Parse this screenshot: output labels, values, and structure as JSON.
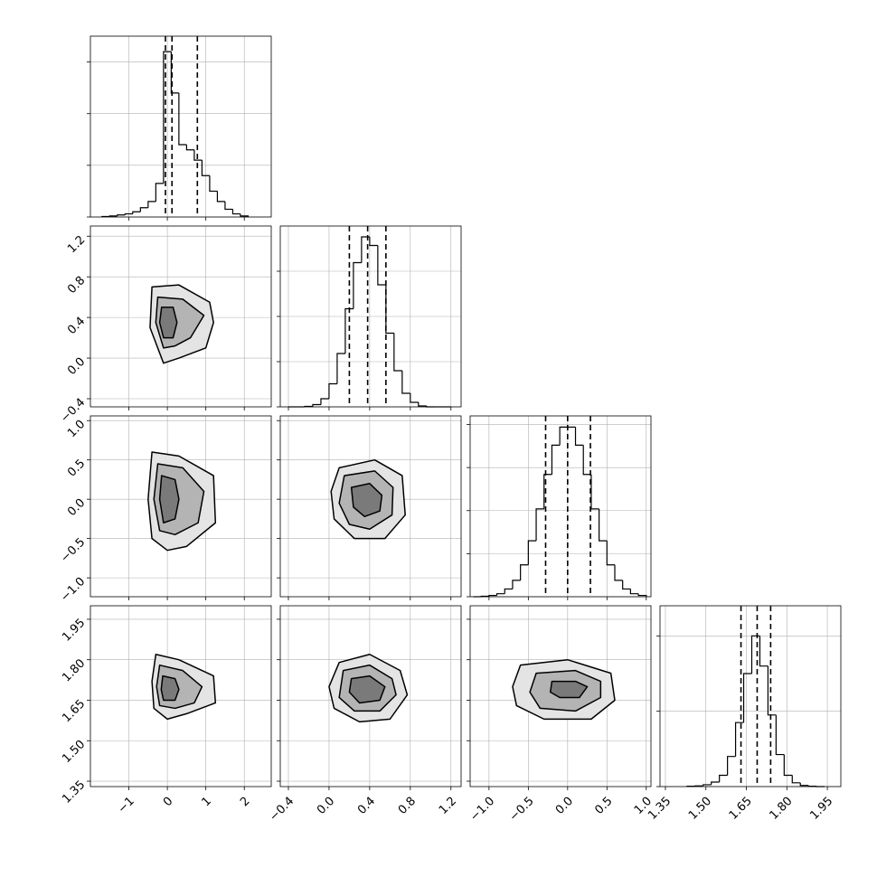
{
  "chart_data": {
    "type": "corner",
    "grid": true,
    "line_color": "#000000",
    "grid_color": "#b0b0b0",
    "fill_colors": [
      "#e4e4e4",
      "#b4b4b4",
      "#7a7a7a"
    ],
    "parameters": [
      {
        "lim": [
          -2.0,
          2.7
        ],
        "ticks": [
          {
            "value": -1,
            "label": "−1"
          },
          0,
          1,
          2
        ],
        "quantiles": [
          -0.05,
          0.12,
          0.78
        ],
        "hist": {
          "bins": [
            -1.7,
            -1.5,
            -1.3,
            -1.1,
            -0.9,
            -0.7,
            -0.5,
            -0.3,
            -0.1,
            0.1,
            0.3,
            0.5,
            0.7,
            0.9,
            1.1,
            1.3,
            1.5,
            1.7,
            1.9,
            2.1
          ],
          "counts": [
            1,
            2,
            4,
            6,
            10,
            18,
            30,
            65,
            320,
            240,
            140,
            130,
            110,
            80,
            50,
            30,
            15,
            6,
            2
          ],
          "ylim": [
            0,
            350
          ],
          "yticks": [
            0,
            100,
            200,
            300
          ]
        }
      },
      {
        "lim": [
          -0.48,
          1.3
        ],
        "ticks": [
          {
            "value": -0.4,
            "label": "−0.4"
          },
          {
            "value": 0,
            "label": "0.0"
          },
          0.4,
          0.8,
          1.2
        ],
        "quantiles": [
          0.2,
          0.38,
          0.56
        ],
        "hist": {
          "bins": [
            -0.4,
            -0.32,
            -0.24,
            -0.16,
            -0.08,
            0,
            0.08,
            0.16,
            0.24,
            0.32,
            0.4,
            0.48,
            0.56,
            0.64,
            0.72,
            0.8,
            0.88,
            0.96,
            1.04,
            1.12,
            1.2
          ],
          "counts": [
            0,
            0,
            1,
            5,
            18,
            51,
            118,
            217,
            319,
            376,
            357,
            270,
            163,
            80,
            30,
            10,
            2,
            0,
            0,
            0
          ],
          "ylim": [
            0,
            400
          ],
          "yticks": [
            0,
            100,
            200,
            300
          ]
        }
      },
      {
        "lim": [
          -1.24,
          1.06
        ],
        "ticks": [
          {
            "value": -1,
            "label": "−1.0"
          },
          {
            "value": -0.5,
            "label": "−0.5"
          },
          {
            "value": 0,
            "label": "0.0"
          },
          0.5,
          {
            "value": 1,
            "label": "1.0"
          }
        ],
        "quantiles": [
          -0.28,
          0,
          0.29
        ],
        "hist": {
          "bins": [
            -1.2,
            -1.1,
            -1.0,
            -0.9,
            -0.8,
            -0.7,
            -0.6,
            -0.5,
            -0.4,
            -0.3,
            -0.2,
            -0.1,
            0,
            0.1,
            0.2,
            0.3,
            0.4,
            0.5,
            0.6,
            0.7,
            0.8,
            0.9,
            1.0
          ],
          "counts": [
            0,
            1,
            3,
            7,
            18,
            38,
            74,
            130,
            204,
            284,
            352,
            394,
            394,
            352,
            284,
            204,
            130,
            74,
            38,
            18,
            7,
            3
          ],
          "ylim": [
            0,
            420
          ],
          "yticks": [
            0,
            100,
            200,
            300,
            400
          ]
        }
      },
      {
        "lim": [
          1.33,
          2.0
        ],
        "ticks": [
          1.35,
          {
            "value": 1.5,
            "label": "1.50"
          },
          1.65,
          {
            "value": 1.8,
            "label": "1.80"
          },
          1.95
        ],
        "quantiles": [
          1.63,
          1.69,
          1.74
        ],
        "hist": {
          "bins": [
            1.43,
            1.46,
            1.49,
            1.52,
            1.55,
            1.58,
            1.61,
            1.64,
            1.67,
            1.7,
            1.73,
            1.76,
            1.79,
            1.82,
            1.85,
            1.88,
            1.91,
            1.94
          ],
          "counts": [
            1,
            2,
            5,
            12,
            30,
            80,
            170,
            300,
            400,
            320,
            190,
            85,
            30,
            10,
            3,
            1,
            0
          ],
          "ylim": [
            0,
            480
          ],
          "yticks": [
            0,
            200,
            400
          ]
        }
      }
    ],
    "panels": [
      {
        "contours": [
          {
            "x": [
              -0.4,
              0.3,
              1.1,
              1.2,
              1.0,
              0.3,
              -0.1,
              -0.45
            ],
            "y": [
              0.7,
              0.72,
              0.55,
              0.35,
              0.1,
              0.0,
              -0.05,
              0.3
            ]
          },
          {
            "x": [
              -0.25,
              0.4,
              0.95,
              0.6,
              0.2,
              -0.1,
              -0.3
            ],
            "y": [
              0.6,
              0.58,
              0.42,
              0.2,
              0.12,
              0.1,
              0.35
            ]
          },
          {
            "x": [
              -0.15,
              0.15,
              0.25,
              0.15,
              -0.1,
              -0.2
            ],
            "y": [
              0.5,
              0.5,
              0.35,
              0.2,
              0.2,
              0.35
            ]
          }
        ]
      },
      {
        "contours": [
          {
            "x": [
              -0.4,
              0.3,
              1.2,
              1.25,
              0.5,
              0,
              -0.4,
              -0.5
            ],
            "y": [
              0.6,
              0.55,
              0.3,
              -0.3,
              -0.6,
              -0.65,
              -0.5,
              0
            ]
          },
          {
            "x": [
              -0.25,
              0.4,
              0.95,
              0.8,
              0.2,
              -0.2,
              -0.35
            ],
            "y": [
              0.45,
              0.4,
              0.1,
              -0.3,
              -0.45,
              -0.4,
              0
            ]
          },
          {
            "x": [
              -0.15,
              0.2,
              0.3,
              0.2,
              -0.1,
              -0.2
            ],
            "y": [
              0.3,
              0.25,
              0,
              -0.25,
              -0.3,
              0
            ]
          }
        ]
      },
      {
        "contours": [
          {
            "x": [
              0.1,
              0.45,
              0.72,
              0.75,
              0.55,
              0.25,
              0.05,
              0.02
            ],
            "y": [
              0.4,
              0.5,
              0.3,
              -0.2,
              -0.5,
              -0.5,
              -0.25,
              0.1
            ]
          },
          {
            "x": [
              0.15,
              0.45,
              0.63,
              0.62,
              0.4,
              0.2,
              0.1
            ],
            "y": [
              0.3,
              0.36,
              0.15,
              -0.2,
              -0.38,
              -0.32,
              -0.05
            ]
          },
          {
            "x": [
              0.22,
              0.4,
              0.52,
              0.5,
              0.35,
              0.24
            ],
            "y": [
              0.15,
              0.2,
              0.05,
              -0.15,
              -0.22,
              -0.1
            ]
          }
        ]
      },
      {
        "contours": [
          {
            "x": [
              -0.3,
              0.3,
              1.2,
              1.25,
              0.5,
              0,
              -0.35,
              -0.4
            ],
            "y": [
              1.82,
              1.8,
              1.74,
              1.64,
              1.6,
              1.58,
              1.62,
              1.72
            ]
          },
          {
            "x": [
              -0.2,
              0.4,
              0.9,
              0.7,
              0.2,
              -0.2,
              -0.28
            ],
            "y": [
              1.78,
              1.76,
              1.7,
              1.64,
              1.62,
              1.63,
              1.7
            ]
          },
          {
            "x": [
              -0.12,
              0.2,
              0.3,
              0.2,
              -0.1,
              -0.16
            ],
            "y": [
              1.74,
              1.73,
              1.69,
              1.65,
              1.65,
              1.69
            ]
          }
        ]
      },
      {
        "contours": [
          {
            "x": [
              0.1,
              0.4,
              0.7,
              0.77,
              0.6,
              0.3,
              0.05,
              0.0
            ],
            "y": [
              1.79,
              1.82,
              1.76,
              1.67,
              1.58,
              1.57,
              1.62,
              1.7
            ]
          },
          {
            "x": [
              0.14,
              0.4,
              0.62,
              0.66,
              0.5,
              0.25,
              0.1
            ],
            "y": [
              1.76,
              1.78,
              1.73,
              1.67,
              1.61,
              1.61,
              1.66
            ]
          },
          {
            "x": [
              0.22,
              0.4,
              0.55,
              0.5,
              0.3,
              0.2
            ],
            "y": [
              1.73,
              1.74,
              1.7,
              1.65,
              1.64,
              1.68
            ]
          }
        ]
      },
      {
        "contours": [
          {
            "x": [
              -0.6,
              0,
              0.55,
              0.6,
              0.3,
              -0.3,
              -0.65,
              -0.7
            ],
            "y": [
              1.78,
              1.8,
              1.75,
              1.65,
              1.58,
              1.58,
              1.63,
              1.7
            ]
          },
          {
            "x": [
              -0.4,
              0.1,
              0.42,
              0.42,
              0.1,
              -0.35,
              -0.48
            ],
            "y": [
              1.75,
              1.76,
              1.72,
              1.66,
              1.61,
              1.62,
              1.68
            ]
          },
          {
            "x": [
              -0.2,
              0.1,
              0.25,
              0.15,
              -0.1,
              -0.22
            ],
            "y": [
              1.72,
              1.72,
              1.7,
              1.66,
              1.66,
              1.68
            ]
          }
        ]
      }
    ]
  }
}
